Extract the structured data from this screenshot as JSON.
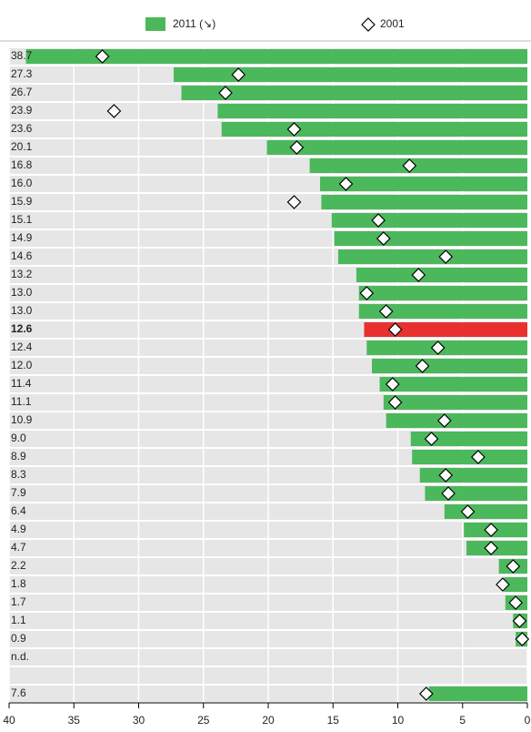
{
  "chart_data": {
    "type": "bar",
    "orientation": "horizontal",
    "series": [
      {
        "name": "2011 (↘)",
        "color": "#4cb85c",
        "values": [
          38.7,
          27.3,
          26.7,
          23.9,
          23.6,
          20.1,
          16.8,
          16.0,
          15.9,
          15.1,
          14.9,
          14.6,
          13.2,
          13.0,
          13.0,
          12.6,
          12.4,
          12.0,
          11.4,
          11.1,
          10.9,
          9.0,
          8.9,
          8.3,
          7.9,
          6.4,
          4.9,
          4.7,
          2.2,
          1.8,
          1.7,
          1.1,
          0.9,
          null,
          null,
          7.6
        ],
        "value_labels": [
          "38.7",
          "27.3",
          "26.7",
          "23.9",
          "23.6",
          "20.1",
          "16.8",
          "16.0",
          "15.9",
          "15.1",
          "14.9",
          "14.6",
          "13.2",
          "13.0",
          "13.0",
          "12.6",
          "12.4",
          "12.0",
          "11.4",
          "11.1",
          "10.9",
          "9.0",
          "8.9",
          "8.3",
          "7.9",
          "6.4",
          "4.9",
          "4.7",
          "2.2",
          "1.8",
          "1.7",
          "1.1",
          "0.9",
          "n.d.",
          null,
          "7.6"
        ]
      },
      {
        "name": "2001",
        "color": "#ffffff",
        "marker": "diamond",
        "values": [
          32.8,
          22.3,
          23.3,
          31.9,
          18.0,
          17.8,
          9.1,
          14.0,
          18.0,
          11.5,
          11.1,
          6.3,
          8.4,
          12.4,
          10.9,
          10.2,
          6.9,
          8.1,
          10.4,
          10.2,
          6.4,
          7.4,
          3.8,
          6.3,
          6.1,
          4.6,
          2.8,
          2.8,
          1.1,
          1.9,
          0.9,
          0.6,
          0.4,
          null,
          null,
          7.8
        ]
      }
    ],
    "highlight": 15,
    "highlight_color": "#e8312f",
    "xlim": [
      40,
      0
    ],
    "xticks": [
      40,
      35,
      30,
      25,
      20,
      15,
      10,
      5,
      0
    ],
    "grid": true
  }
}
